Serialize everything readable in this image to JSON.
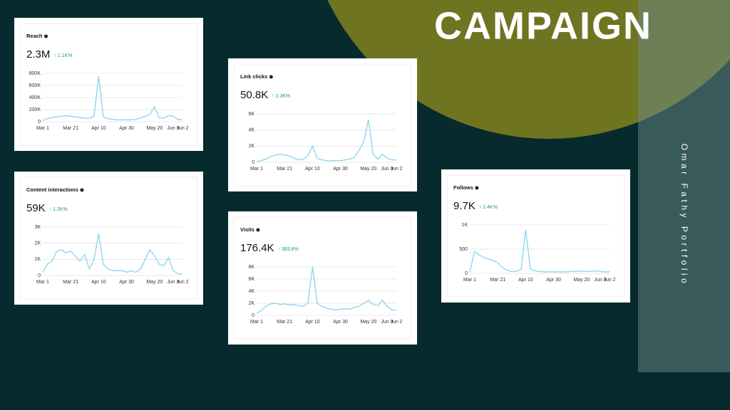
{
  "slide": {
    "title": "CAMPAIGN",
    "side_text": "Omar Fathy Portfolio"
  },
  "chart_data": [
    {
      "type": "line",
      "title": "Reach",
      "total": "2.3M",
      "change": "↑ 1.1K%",
      "color": "#86d4ee",
      "categories": [
        "Mar 1",
        null,
        null,
        null,
        null,
        null,
        "Mar 21",
        null,
        null,
        null,
        null,
        null,
        "Apr 10",
        null,
        null,
        null,
        null,
        null,
        "Apr 30",
        null,
        null,
        null,
        null,
        null,
        "May 20",
        null,
        null,
        null,
        "Jun 9",
        null,
        "Jun 2"
      ],
      "values": [
        20000,
        50000,
        70000,
        80000,
        90000,
        100000,
        90000,
        80000,
        70000,
        60000,
        60000,
        90000,
        750000,
        80000,
        50000,
        40000,
        30000,
        30000,
        30000,
        30000,
        40000,
        60000,
        90000,
        120000,
        250000,
        60000,
        60000,
        100000,
        90000,
        40000,
        30000
      ],
      "ylim": [
        0,
        800000
      ],
      "yticks": [
        0,
        {
          "value": 200000,
          "label": "200K"
        },
        {
          "value": 400000,
          "label": "400K"
        },
        {
          "value": 600000,
          "label": "600K"
        },
        {
          "value": 800000,
          "label": "800K"
        }
      ],
      "grid": true
    },
    {
      "type": "line",
      "title": "Link clicks",
      "total": "50.8K",
      "change": "↑ 2.3K%",
      "color": "#86d4ee",
      "categories": [
        "Mar 1",
        null,
        null,
        null,
        null,
        null,
        "Mar 21",
        null,
        null,
        null,
        null,
        null,
        "Apr 10",
        null,
        null,
        null,
        null,
        null,
        "Apr 30",
        null,
        null,
        null,
        null,
        null,
        "May 20",
        null,
        null,
        null,
        "Jun 9",
        null,
        "Jun 2"
      ],
      "values": [
        100,
        200,
        400,
        700,
        900,
        1000,
        900,
        800,
        500,
        300,
        400,
        800,
        2000,
        500,
        300,
        200,
        200,
        200,
        200,
        300,
        400,
        600,
        1500,
        2500,
        5300,
        1000,
        400,
        1000,
        500,
        300,
        300
      ],
      "ylim": [
        0,
        6000
      ],
      "yticks": [
        0,
        {
          "value": 2000,
          "label": "2K"
        },
        {
          "value": 4000,
          "label": "4K"
        },
        {
          "value": 6000,
          "label": "6K"
        }
      ],
      "grid": true
    },
    {
      "type": "line",
      "title": "Content interactions",
      "total": "59K",
      "change": "↑ 1.2K%",
      "color": "#86d4ee",
      "categories": [
        "Mar 1",
        null,
        null,
        null,
        null,
        null,
        "Mar 21",
        null,
        null,
        null,
        null,
        null,
        "Apr 10",
        null,
        null,
        null,
        null,
        null,
        "Apr 30",
        null,
        null,
        null,
        null,
        null,
        "May 20",
        null,
        null,
        null,
        "Jun 9",
        null,
        "Jun 2"
      ],
      "values": [
        200,
        700,
        900,
        1500,
        1600,
        1400,
        1500,
        1200,
        900,
        1300,
        400,
        1000,
        2600,
        700,
        400,
        300,
        300,
        300,
        200,
        300,
        200,
        400,
        1000,
        1600,
        1200,
        700,
        600,
        1100,
        300,
        100,
        100
      ],
      "ylim": [
        0,
        3000
      ],
      "yticks": [
        0,
        {
          "value": 1000,
          "label": "1K"
        },
        {
          "value": 2000,
          "label": "2K"
        },
        {
          "value": 3000,
          "label": "3K"
        }
      ],
      "grid": true
    },
    {
      "type": "line",
      "title": "Visits",
      "total": "176.4K",
      "change": "↑ 383.8%",
      "color": "#86d4ee",
      "categories": [
        "Mar 1",
        null,
        null,
        null,
        null,
        null,
        "Mar 21",
        null,
        null,
        null,
        null,
        null,
        "Apr 10",
        null,
        null,
        null,
        null,
        null,
        "Apr 30",
        null,
        null,
        null,
        null,
        null,
        "May 20",
        null,
        null,
        null,
        "Jun 9",
        null,
        "Jun 2"
      ],
      "values": [
        300,
        800,
        1500,
        1900,
        2000,
        1800,
        1900,
        1700,
        1800,
        1600,
        1500,
        2000,
        8000,
        2000,
        1500,
        1200,
        1000,
        900,
        1000,
        1100,
        1000,
        1300,
        1500,
        2000,
        2500,
        1800,
        1600,
        2500,
        1500,
        900,
        800
      ],
      "ylim": [
        0,
        8000
      ],
      "yticks": [
        0,
        {
          "value": 2000,
          "label": "2K"
        },
        {
          "value": 4000,
          "label": "4K"
        },
        {
          "value": 6000,
          "label": "6K"
        },
        {
          "value": 8000,
          "label": "8K"
        }
      ],
      "grid": true
    },
    {
      "type": "line",
      "title": "Follows",
      "total": "9.7K",
      "change": "↑ 1.4K%",
      "color": "#86d4ee",
      "categories": [
        "Mar 1",
        null,
        null,
        null,
        null,
        null,
        "Mar 21",
        null,
        null,
        null,
        null,
        null,
        "Apr 10",
        null,
        null,
        null,
        null,
        null,
        "Apr 30",
        null,
        null,
        null,
        null,
        null,
        "May 20",
        null,
        null,
        null,
        "Jun 9",
        null,
        "Jun 2"
      ],
      "values": [
        30,
        450,
        380,
        330,
        300,
        260,
        220,
        120,
        60,
        40,
        40,
        80,
        900,
        90,
        50,
        40,
        30,
        30,
        30,
        30,
        30,
        30,
        40,
        50,
        40,
        40,
        40,
        50,
        40,
        30,
        30
      ],
      "ylim": [
        0,
        1000
      ],
      "yticks": [
        0,
        500,
        {
          "value": 1000,
          "label": "1K"
        }
      ],
      "grid": true
    }
  ]
}
